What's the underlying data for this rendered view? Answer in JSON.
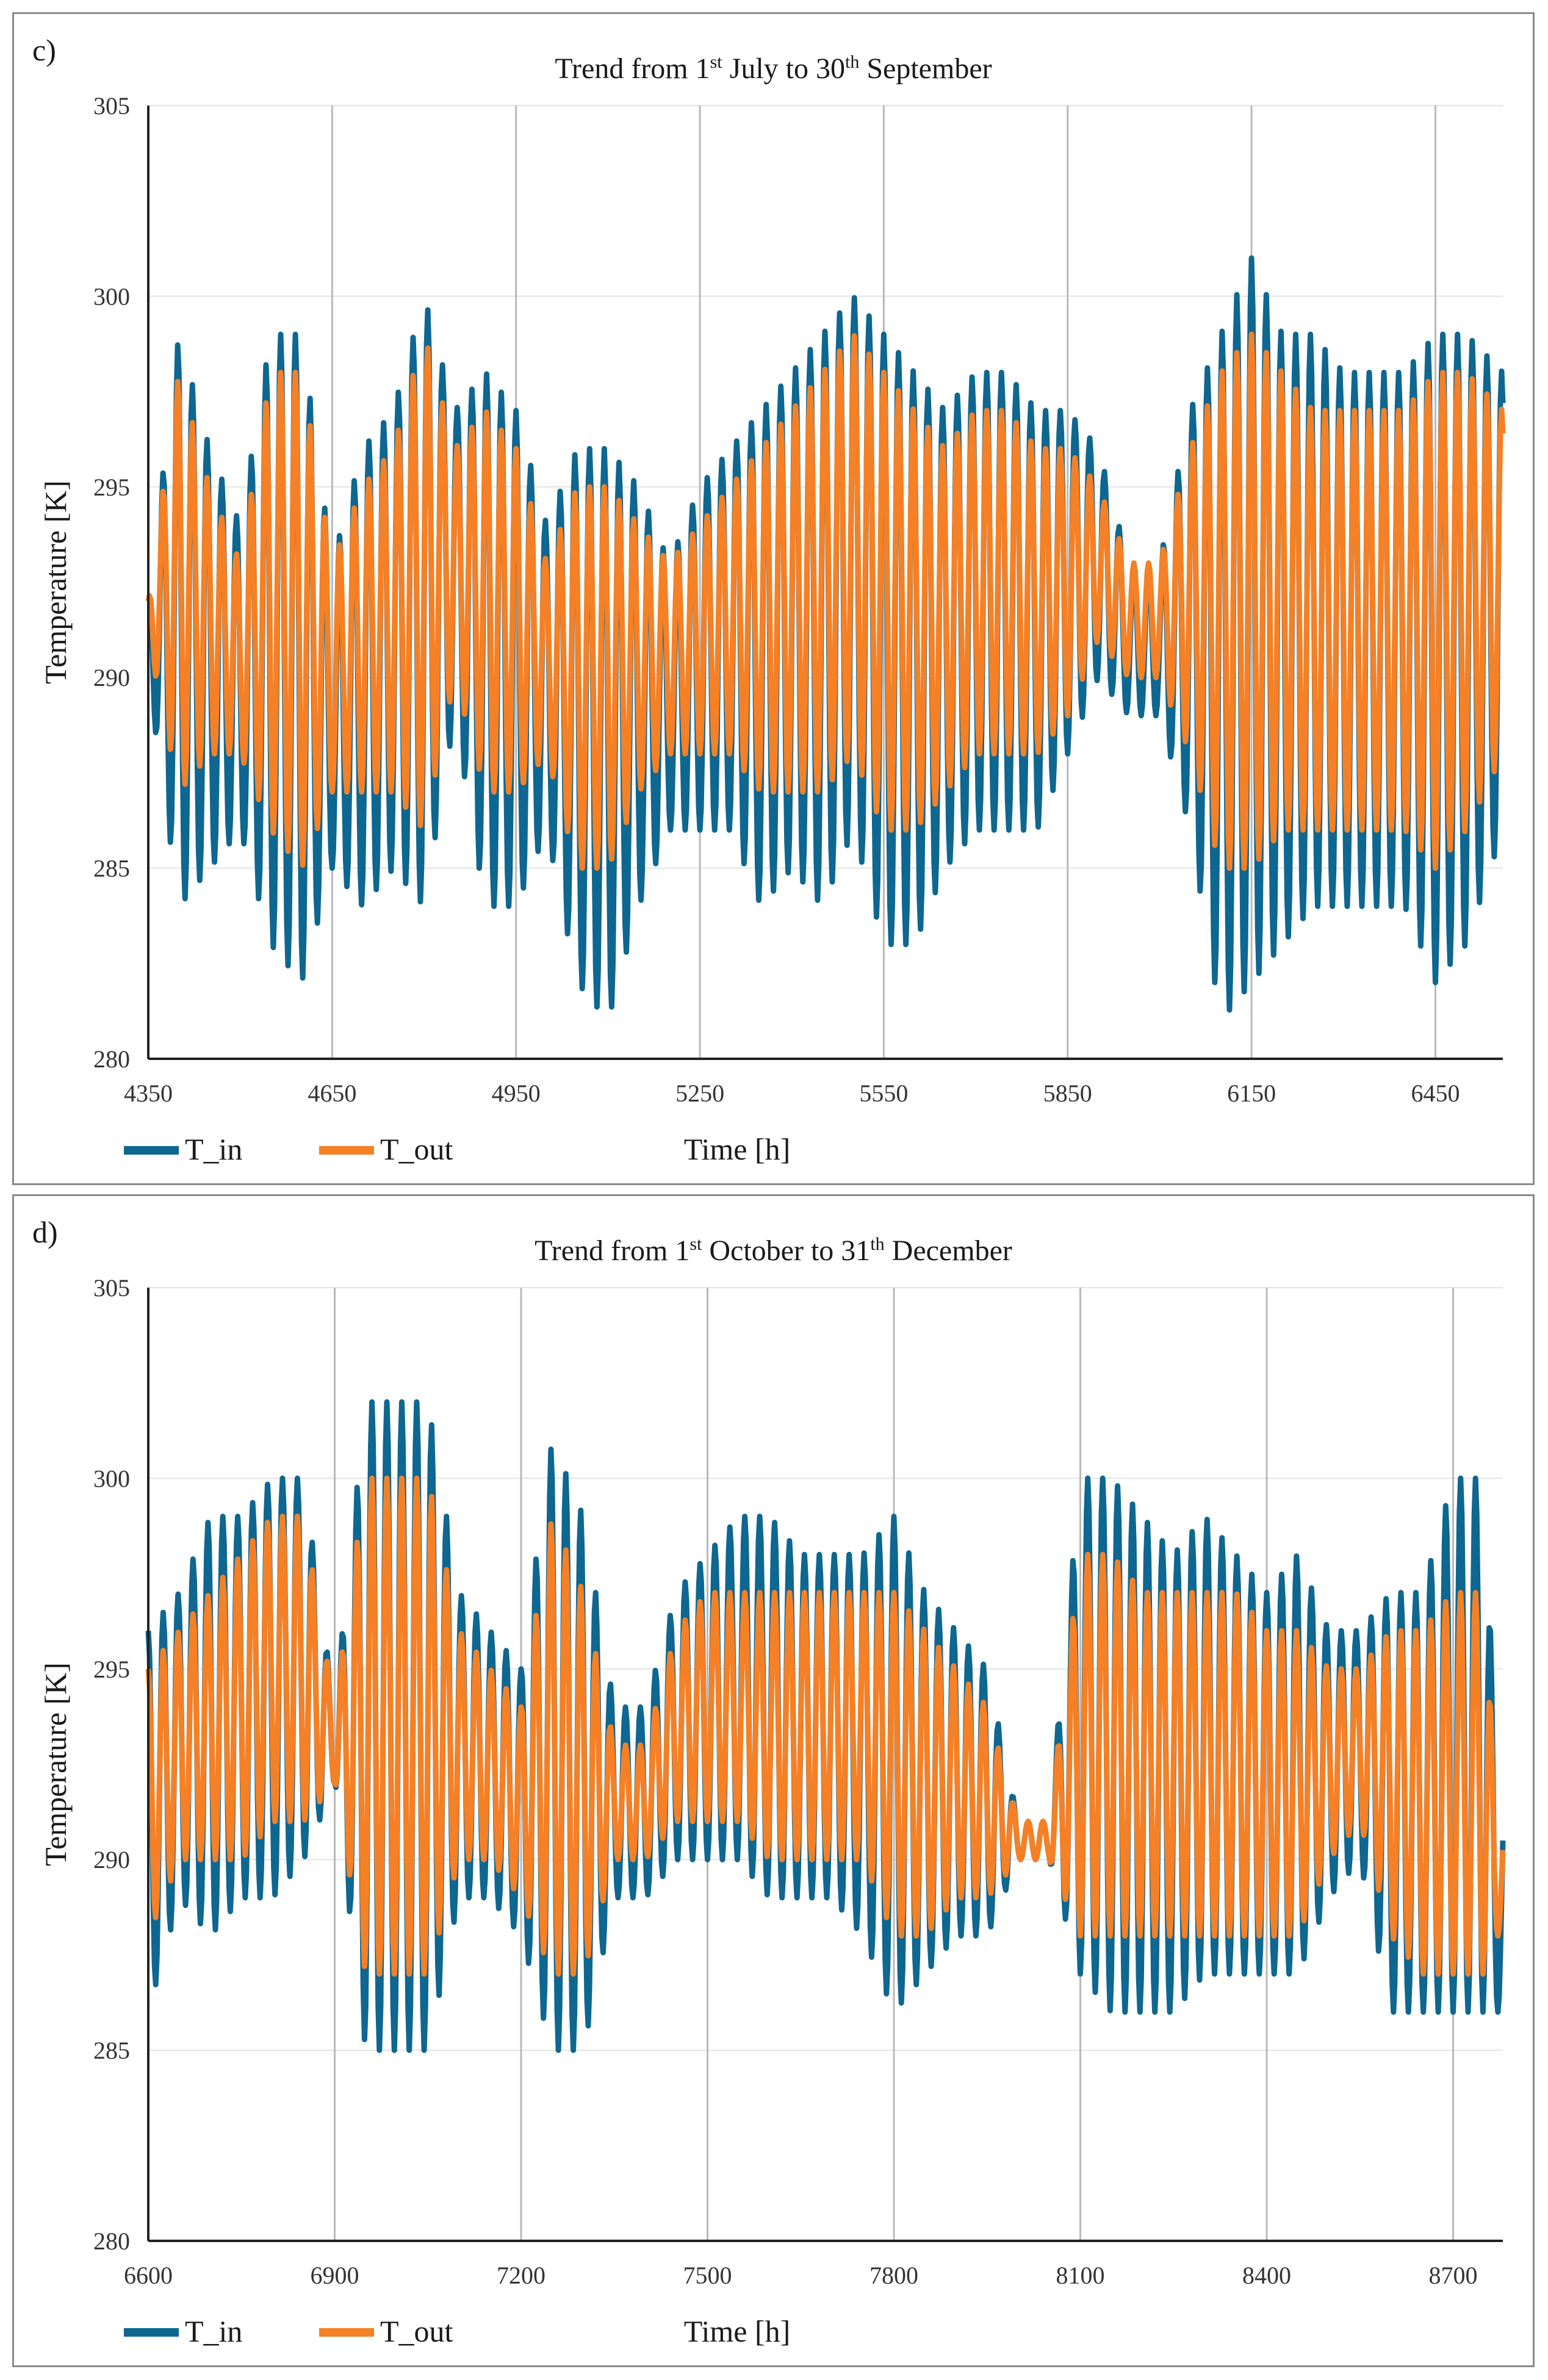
{
  "colors": {
    "t_in": "#0d6791",
    "t_out": "#f58025",
    "grid": "#b9b9b9",
    "axis": "#222222"
  },
  "chart_data": [
    {
      "panel_label": "c)",
      "type": "line",
      "title_parts": {
        "a": "Trend from 1",
        "a_sup": "st",
        "b": " July to 30",
        "b_sup": "th",
        "c": " September"
      },
      "xlabel": "Time [h]",
      "ylabel": "Temperature [K]",
      "xlim": [
        4350,
        6560
      ],
      "ylim": [
        280,
        305
      ],
      "xticks": [
        4350,
        4650,
        4950,
        5250,
        5550,
        5850,
        6150,
        6450
      ],
      "yticks": [
        280,
        285,
        290,
        295,
        300,
        305
      ],
      "grid": "vertical and horizontal",
      "legend_position": "bottom-left",
      "series": [
        {
          "name": "T_in",
          "description": "indoor temperature, daily oscillation, range about 281-301 K",
          "profile": {
            "x": [
              4350,
              4400,
              4450,
              4500,
              4550,
              4600,
              4650,
              4700,
              4750,
              4800,
              4850,
              4900,
              4950,
              5000,
              5050,
              5100,
              5150,
              5200,
              5250,
              5300,
              5350,
              5400,
              5450,
              5500,
              5550,
              5600,
              5650,
              5700,
              5750,
              5800,
              5850,
              5900,
              5950,
              6000,
              6050,
              6100,
              6150,
              6200,
              6250,
              6300,
              6350,
              6400,
              6450,
              6500,
              6560
            ],
            "max": [
              292,
              299,
              296,
              294,
              299,
              299,
              293,
              296,
              297,
              300,
              297,
              298,
              297,
              294,
              296,
              296,
              295,
              293,
              295,
              296,
              297,
              298,
              299,
              300,
              299,
              298,
              297,
              298,
              298,
              297,
              297,
              296,
              293,
              293,
              297,
              299,
              301,
              299,
              299,
              298,
              298,
              298,
              299,
              299,
              298
            ],
            "min": [
              290,
              284,
              285,
              286,
              283,
              282,
              285,
              284,
              285,
              284,
              289,
              284,
              284,
              286,
              282,
              281,
              284,
              286,
              286,
              286,
              284,
              285,
              284,
              286,
              283,
              283,
              285,
              286,
              286,
              286,
              288,
              290,
              289,
              289,
              286,
              281,
              282,
              283,
              284,
              284,
              284,
              284,
              282,
              283,
              286
            ]
          }
        },
        {
          "name": "T_out",
          "description": "outlet temperature, daily oscillation, range about 284-300 K",
          "profile": {
            "x": [
              4350,
              4400,
              4450,
              4500,
              4550,
              4600,
              4650,
              4700,
              4750,
              4800,
              4850,
              4900,
              4950,
              5000,
              5050,
              5100,
              5150,
              5200,
              5250,
              5300,
              5350,
              5400,
              5450,
              5500,
              5550,
              5600,
              5650,
              5700,
              5750,
              5800,
              5850,
              5900,
              5950,
              6000,
              6050,
              6100,
              6150,
              6200,
              6250,
              6300,
              6350,
              6400,
              6450,
              6500,
              6560
            ],
            "max": [
              292,
              298,
              295,
              293,
              298,
              298,
              293,
              295,
              296,
              299,
              296,
              297,
              296,
              293,
              295,
              295,
              294,
              293,
              294,
              295,
              296,
              297,
              298,
              299,
              298,
              297,
              296,
              297,
              297,
              296,
              296,
              295,
              293,
              293,
              296,
              298,
              299,
              298,
              297,
              297,
              297,
              297,
              298,
              298,
              297
            ],
            "min": [
              291,
              287,
              288,
              288,
              286,
              285,
              287,
              287,
              287,
              286,
              290,
              287,
              287,
              288,
              285,
              285,
              287,
              288,
              288,
              288,
              287,
              287,
              287,
              288,
              286,
              286,
              287,
              288,
              288,
              288,
              289,
              291,
              290,
              290,
              288,
              285,
              285,
              286,
              286,
              286,
              286,
              286,
              285,
              286,
              288
            ]
          }
        }
      ],
      "legend": [
        "T_in",
        "T_out"
      ]
    },
    {
      "panel_label": "d)",
      "type": "line",
      "title_parts": {
        "a": "Trend from 1",
        "a_sup": "st",
        "b": " October to 31",
        "b_sup": "th",
        "c": "  December"
      },
      "xlabel": "Time [h]",
      "ylabel": "Temperature [K]",
      "xlim": [
        6600,
        8780
      ],
      "ylim": [
        280,
        305
      ],
      "xticks": [
        6600,
        6900,
        7200,
        7500,
        7800,
        8100,
        8400,
        8700
      ],
      "yticks": [
        280,
        285,
        290,
        295,
        300,
        305
      ],
      "grid": "vertical and horizontal",
      "legend_position": "bottom-left",
      "series": [
        {
          "name": "T_in",
          "description": "indoor temperature, daily oscillation, range about 284-303 K",
          "profile": {
            "x": [
              6600,
              6650,
              6700,
              6750,
              6800,
              6850,
              6900,
              6950,
              7000,
              7050,
              7100,
              7150,
              7200,
              7250,
              7300,
              7350,
              7400,
              7450,
              7500,
              7550,
              7600,
              7650,
              7700,
              7750,
              7800,
              7850,
              7900,
              7950,
              8000,
              8050,
              8100,
              8150,
              8200,
              8250,
              8300,
              8350,
              8400,
              8450,
              8500,
              8550,
              8600,
              8650,
              8700,
              8750,
              8770
            ],
            "max": [
              296,
              297,
              299,
              299,
              300,
              300,
              294,
              302,
              302,
              302,
              297,
              296,
              295,
              301,
              299,
              294,
              294,
              297,
              298,
              299,
              299,
              298,
              298,
              298,
              299,
              297,
              296,
              295,
              291,
              291,
              300,
              300,
              299,
              298,
              299,
              298,
              297,
              298,
              296,
              296,
              297,
              297,
              300,
              300,
              292
            ],
            "min": [
              286,
              289,
              288,
              289,
              289,
              290,
              292,
              285,
              285,
              285,
              289,
              289,
              288,
              285,
              285,
              289,
              289,
              290,
              290,
              290,
              289,
              289,
              289,
              288,
              286,
              287,
              288,
              288,
              290,
              290,
              287,
              286,
              286,
              286,
              287,
              287,
              287,
              287,
              289,
              290,
              286,
              286,
              286,
              286,
              286
            ]
          }
        },
        {
          "name": "T_out",
          "description": "outlet temperature, daily oscillation, range about 286-300 K",
          "profile": {
            "x": [
              6600,
              6650,
              6700,
              6750,
              6800,
              6850,
              6900,
              6950,
              7000,
              7050,
              7100,
              7150,
              7200,
              7250,
              7300,
              7350,
              7400,
              7450,
              7500,
              7550,
              7600,
              7650,
              7700,
              7750,
              7800,
              7850,
              7900,
              7950,
              8000,
              8050,
              8100,
              8150,
              8200,
              8250,
              8300,
              8350,
              8400,
              8450,
              8500,
              8550,
              8600,
              8650,
              8700,
              8750,
              8770
            ],
            "max": [
              295,
              296,
              297,
              298,
              299,
              299,
              294,
              300,
              300,
              300,
              296,
              295,
              294,
              299,
              297,
              293,
              293,
              296,
              297,
              297,
              297,
              297,
              297,
              297,
              297,
              296,
              295,
              294,
              291,
              291,
              298,
              298,
              297,
              297,
              297,
              297,
              296,
              296,
              295,
              295,
              296,
              296,
              297,
              297,
              291
            ],
            "min": [
              288,
              290,
              290,
              290,
              291,
              291,
              292,
              287,
              287,
              287,
              290,
              290,
              289,
              287,
              287,
              290,
              290,
              291,
              291,
              291,
              290,
              290,
              290,
              290,
              288,
              288,
              289,
              289,
              290,
              290,
              288,
              288,
              288,
              288,
              288,
              288,
              288,
              288,
              290,
              291,
              288,
              287,
              287,
              287,
              288
            ]
          }
        }
      ],
      "legend": [
        "T_in",
        "T_out"
      ]
    }
  ]
}
